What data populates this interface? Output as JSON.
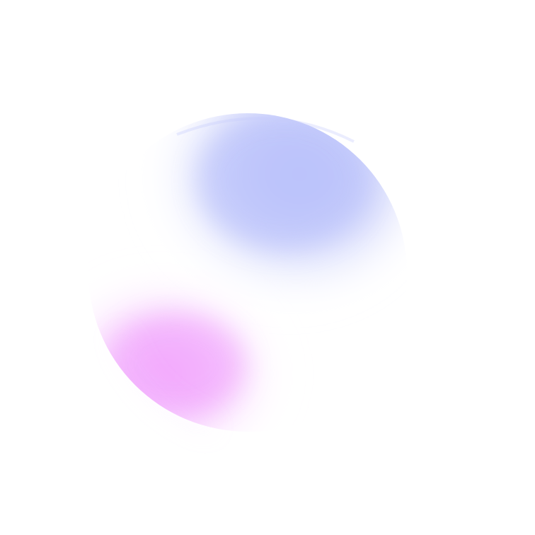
{
  "background_color": "#ffffff",
  "gradient_orb": {
    "colors": {
      "blue": "#b9c1fb",
      "pink": "#f2a6fd",
      "fade": "#ffffff"
    }
  }
}
